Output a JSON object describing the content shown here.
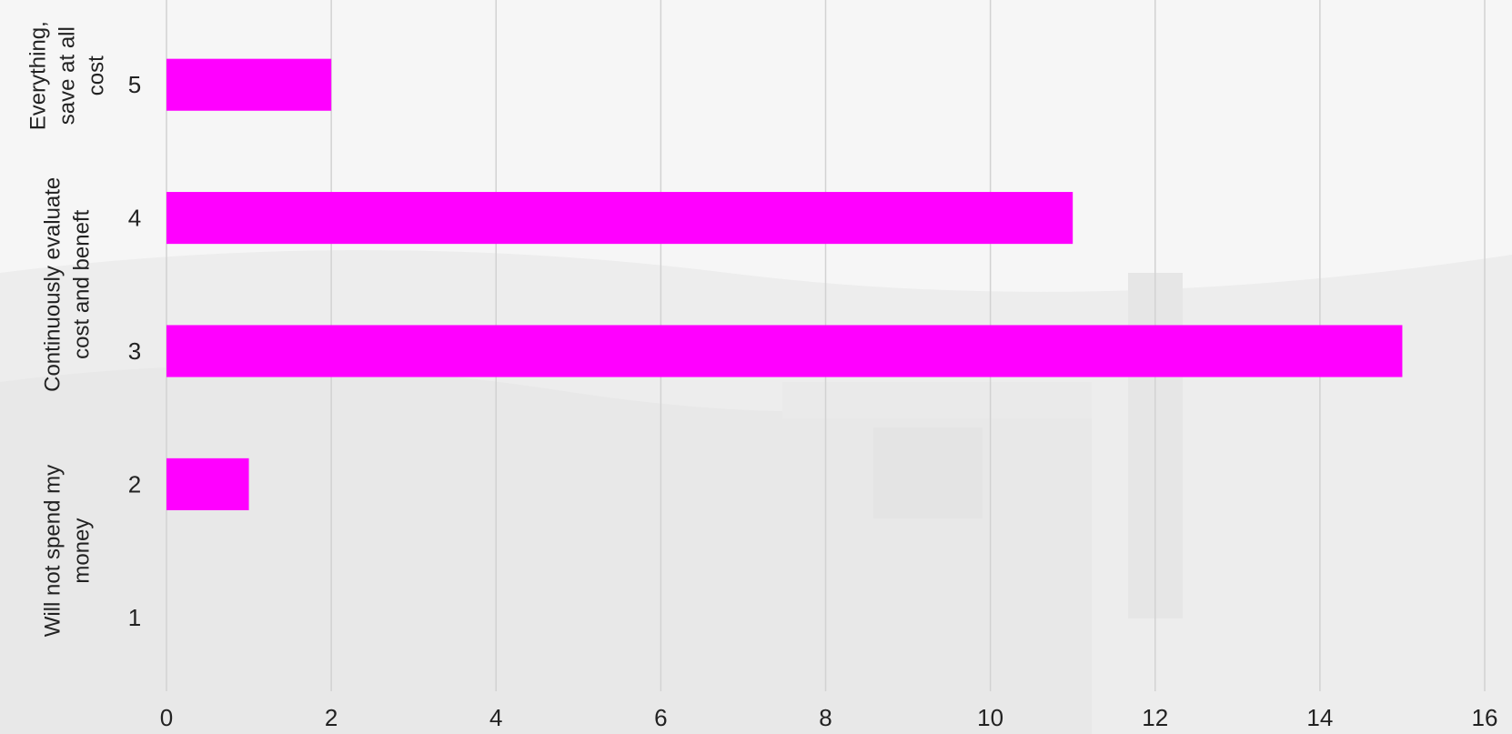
{
  "chart_data": {
    "type": "bar",
    "orientation": "horizontal",
    "categories": [
      "1",
      "2",
      "3",
      "4",
      "5"
    ],
    "values": [
      0,
      1,
      15,
      11,
      2
    ],
    "category_group_labels": [
      {
        "lines": [
          "Will not spend my",
          "money"
        ],
        "categories": [
          "1",
          "2"
        ]
      },
      {
        "lines": [
          "Continuously evaluate",
          "cost and beneft"
        ],
        "categories": [
          "3",
          "4"
        ]
      },
      {
        "lines": [
          "Everything,",
          "save at all",
          "cost"
        ],
        "categories": [
          "5"
        ]
      }
    ],
    "xlim": [
      0,
      16
    ],
    "x_ticks": [
      0,
      2,
      4,
      6,
      8,
      10,
      12,
      14,
      16
    ],
    "grid": "vertical",
    "legend": "none",
    "colors": {
      "bar": "#ff00ff",
      "grid": "#d2d2d2",
      "text": "#222222",
      "background": "#f6f6f6"
    },
    "title": "",
    "xlabel": "",
    "ylabel": ""
  }
}
